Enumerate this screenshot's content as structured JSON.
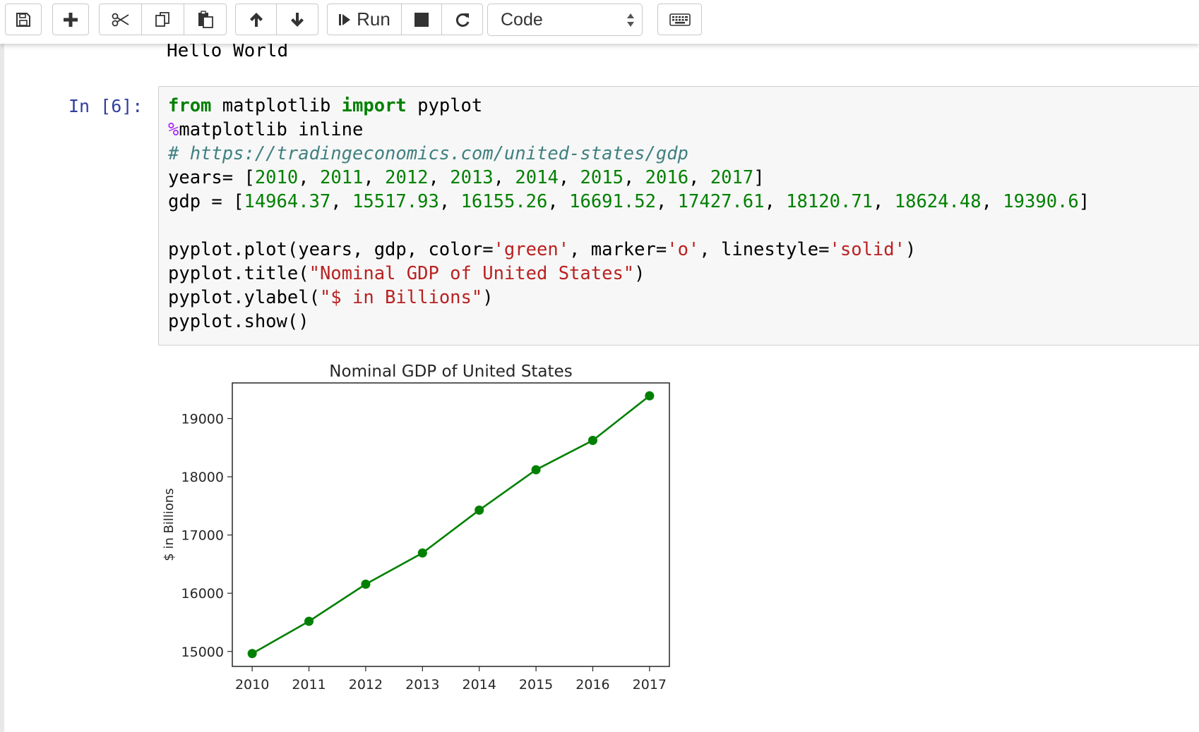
{
  "toolbar": {
    "buttons": [
      {
        "name": "save",
        "icon": "floppy-disk-icon"
      },
      {
        "name": "insert-cell",
        "icon": "plus-icon"
      },
      {
        "name": "cut",
        "icon": "scissors-icon"
      },
      {
        "name": "copy",
        "icon": "copy-icon"
      },
      {
        "name": "paste",
        "icon": "clipboard-icon"
      },
      {
        "name": "move-up",
        "icon": "arrow-up-icon"
      },
      {
        "name": "move-down",
        "icon": "arrow-down-icon"
      },
      {
        "name": "run",
        "icon": "step-forward-icon"
      },
      {
        "name": "interrupt",
        "icon": "stop-icon"
      },
      {
        "name": "restart",
        "icon": "refresh-icon"
      },
      {
        "name": "keyboard",
        "icon": "keyboard-icon"
      }
    ],
    "run_label": "Run",
    "cell_type": "Code"
  },
  "output_text": "Hello World",
  "cell": {
    "prompt": "In [6]:",
    "code": {
      "l1_kw1": "from",
      "l1_mid": " matplotlib ",
      "l1_kw2": "import",
      "l1_end": " pyplot",
      "l2_magic": "%",
      "l2_rest": "matplotlib inline",
      "l3_comment": "# https://tradingeconomics.com/united-states/gdp",
      "l4_start": "years= [",
      "years": [
        "2010",
        "2011",
        "2012",
        "2013",
        "2014",
        "2015",
        "2016",
        "2017"
      ],
      "l4_end": "]",
      "l5_start": "gdp = [",
      "gdp": [
        "14964.37",
        "15517.93",
        "16155.26",
        "16691.52",
        "17427.61",
        "18120.71",
        "18624.48",
        "19390.6"
      ],
      "l5_end": "]",
      "l7_a": "pyplot.plot(years, gdp, color=",
      "l7_s1": "'green'",
      "l7_b": ", marker=",
      "l7_s2": "'o'",
      "l7_c": ", linestyle=",
      "l7_s3": "'solid'",
      "l7_d": ")",
      "l8_a": "pyplot.title(",
      "l8_s": "\"Nominal GDP of United States\"",
      "l8_b": ")",
      "l9_a": "pyplot.ylabel(",
      "l9_s": "\"$ in Billions\"",
      "l9_b": ")",
      "l10": "pyplot.show()"
    }
  },
  "chart_data": {
    "type": "line",
    "title": "Nominal GDP of United States",
    "xlabel": "",
    "ylabel": "$ in Billions",
    "x": [
      2010,
      2011,
      2012,
      2013,
      2014,
      2015,
      2016,
      2017
    ],
    "series": [
      {
        "values": [
          14964.37,
          15517.93,
          16155.26,
          16691.52,
          17427.61,
          18120.71,
          18624.48,
          19390.6
        ]
      }
    ],
    "color": "#008000",
    "marker": "o",
    "xticks": [
      "2010",
      "2011",
      "2012",
      "2013",
      "2014",
      "2015",
      "2016",
      "2017"
    ],
    "yticks": [
      "15000",
      "16000",
      "17000",
      "18000",
      "19000"
    ],
    "xlim": [
      2009.65,
      2017.35
    ],
    "ylim": [
      14743,
      19612
    ],
    "grid": false
  }
}
